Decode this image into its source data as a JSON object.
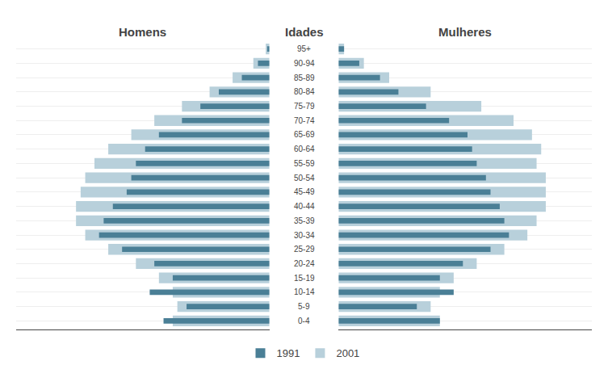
{
  "chart_data": [
    {
      "type": "bar",
      "orientation": "horizontal",
      "title": "Homens",
      "ylabel": "Idades",
      "categories": [
        "0-4",
        "5-9",
        "10-14",
        "15-19",
        "20-24",
        "25-29",
        "30-34",
        "35-39",
        "40-44",
        "45-49",
        "50-54",
        "55-59",
        "60-64",
        "65-69",
        "70-74",
        "75-79",
        "80-84",
        "85-89",
        "90-94",
        "95+"
      ],
      "series": [
        {
          "name": "1991",
          "color": "#4a7f96",
          "values": [
            2.3,
            1.8,
            2.6,
            2.1,
            2.5,
            3.2,
            3.7,
            3.6,
            3.4,
            3.1,
            3.0,
            2.9,
            2.7,
            2.4,
            1.9,
            1.5,
            1.1,
            0.6,
            0.25,
            0.05
          ]
        },
        {
          "name": "2001",
          "color": "#b8d0db",
          "values": [
            2.1,
            2.0,
            2.1,
            2.4,
            2.9,
            3.5,
            4.0,
            4.2,
            4.2,
            4.1,
            4.0,
            3.8,
            3.5,
            3.0,
            2.5,
            1.9,
            1.3,
            0.8,
            0.35,
            0.08
          ]
        }
      ],
      "xlim": [
        0,
        5.5
      ],
      "xticks": [],
      "tick_labels": "y",
      "grid": true,
      "legend": "bottom"
    },
    {
      "type": "bar",
      "orientation": "horizontal",
      "title": "Mulheres",
      "categories": [
        "0-4",
        "5-9",
        "10-14",
        "15-19",
        "20-24",
        "25-29",
        "30-34",
        "35-39",
        "40-44",
        "45-49",
        "50-54",
        "55-59",
        "60-64",
        "65-69",
        "70-74",
        "75-79",
        "80-84",
        "85-89",
        "90-94",
        "95+"
      ],
      "series": [
        {
          "name": "1991",
          "color": "#4a7f96",
          "values": [
            2.2,
            1.7,
            2.5,
            2.2,
            2.7,
            3.3,
            3.7,
            3.6,
            3.5,
            3.3,
            3.2,
            3.0,
            2.9,
            2.8,
            2.4,
            1.9,
            1.3,
            0.9,
            0.45,
            0.12
          ]
        },
        {
          "name": "2001",
          "color": "#b8d0db",
          "values": [
            2.2,
            2.0,
            2.2,
            2.5,
            3.0,
            3.6,
            4.1,
            4.3,
            4.5,
            4.5,
            4.5,
            4.3,
            4.4,
            4.2,
            3.8,
            3.1,
            2.0,
            1.1,
            0.55,
            0.12
          ]
        }
      ],
      "xlim": [
        0,
        5.5
      ],
      "xticks": [],
      "tick_labels": "y",
      "grid": true
    }
  ]
}
